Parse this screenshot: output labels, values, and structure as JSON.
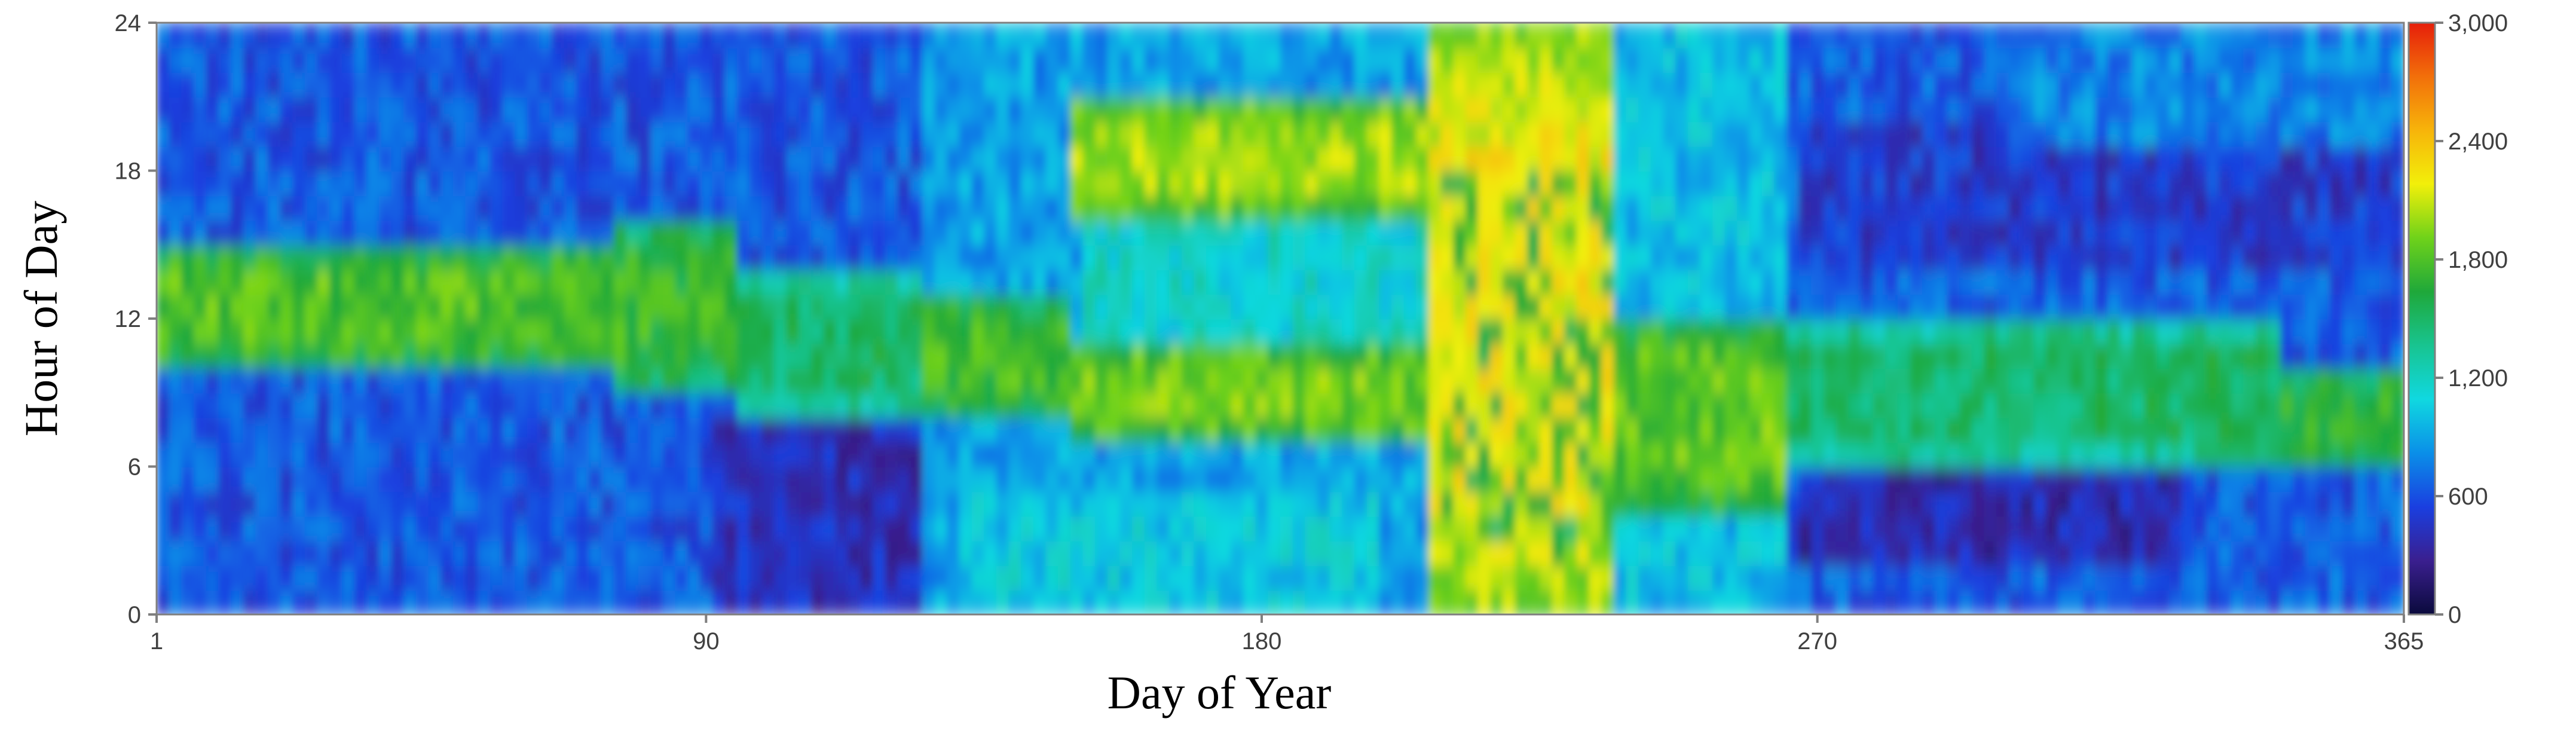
{
  "chart_data": {
    "type": "heatmap",
    "title": "",
    "xlabel": "Day of Year",
    "ylabel": "Hour of Day",
    "xlim": [
      1,
      365
    ],
    "ylim": [
      0,
      24
    ],
    "x_ticks": [
      1,
      90,
      180,
      270,
      365
    ],
    "y_ticks": [
      0,
      6,
      12,
      18,
      24
    ],
    "colorbar": {
      "range": [
        0,
        3000
      ],
      "ticks": [
        0,
        600,
        1200,
        1800,
        2400,
        3000
      ],
      "tick_labels": [
        "0",
        "600",
        "1,200",
        "1,800",
        "2,400",
        "3,000"
      ],
      "colormap": [
        "#0a0a3c",
        "#3a1f8f",
        "#1a3fe0",
        "#0a8fe8",
        "#10d8e0",
        "#18c490",
        "#1fa83a",
        "#6fd21a",
        "#f2ef0a",
        "#f7b40a",
        "#f26f0a",
        "#e61e0a"
      ]
    },
    "segments": [
      {
        "day_start": 1,
        "day_end": 75,
        "hour_start": 10,
        "hour_end": 15,
        "value": 1800
      },
      {
        "day_start": 75,
        "day_end": 95,
        "hour_start": 9,
        "hour_end": 16,
        "value": 1700
      },
      {
        "day_start": 95,
        "day_end": 125,
        "hour_start": 8,
        "hour_end": 14,
        "value": 1500
      },
      {
        "day_start": 125,
        "day_end": 150,
        "hour_start": 8,
        "hour_end": 13,
        "value": 1750
      },
      {
        "day_start": 150,
        "day_end": 208,
        "hour_start": 7,
        "hour_end": 11,
        "value": 1900
      },
      {
        "day_start": 150,
        "day_end": 208,
        "hour_start": 16,
        "hour_end": 21,
        "value": 2000
      },
      {
        "day_start": 208,
        "day_end": 237,
        "hour_start": 0,
        "hour_end": 24,
        "value": 2200
      },
      {
        "day_start": 237,
        "day_end": 266,
        "hour_start": 4,
        "hour_end": 12,
        "value": 1850
      },
      {
        "day_start": 266,
        "day_end": 345,
        "hour_start": 6,
        "hour_end": 12,
        "value": 1500
      },
      {
        "day_start": 345,
        "day_end": 365,
        "hour_start": 6,
        "hour_end": 10,
        "value": 1700
      }
    ]
  },
  "colors": {
    "background": "#ffffff",
    "axis": "#7f7f7f",
    "tick_text": "#404040",
    "title_text": "#000000"
  }
}
